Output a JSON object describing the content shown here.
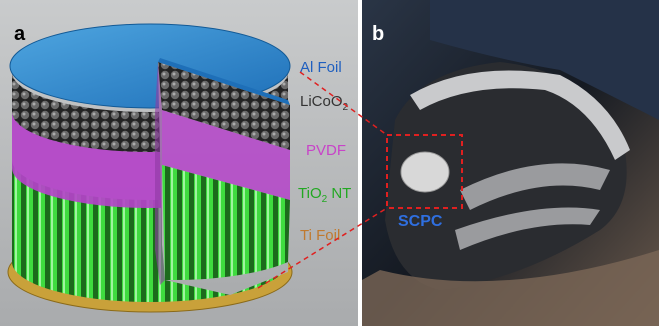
{
  "panels": [
    {
      "label": "a",
      "layers": [
        {
          "text": "Al Foil"
        },
        {
          "text": "LiCoO",
          "subscript": "2"
        },
        {
          "text": "PVDF"
        },
        {
          "text": "TiO",
          "subscript": "2",
          "suffix": " NT"
        },
        {
          "text": "Ti Foil"
        }
      ]
    },
    {
      "label": "b",
      "callout": "SCPC"
    }
  ]
}
